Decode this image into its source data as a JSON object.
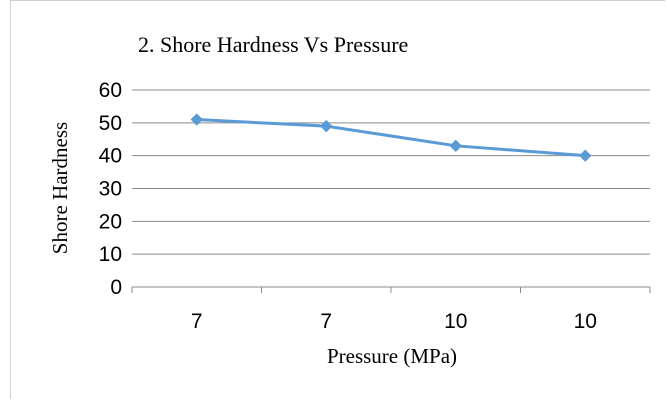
{
  "chart_data": {
    "type": "line",
    "title": "2. Shore Hardness Vs Pressure",
    "xlabel": "Pressure (MPa)",
    "ylabel": "Shore Hardness",
    "categories": [
      "7",
      "7",
      "10",
      "10"
    ],
    "series": [
      {
        "values": [
          51,
          49,
          43,
          40
        ],
        "color": "#5b9bd5",
        "marker": "diamond"
      }
    ],
    "ylim": [
      0,
      60
    ],
    "yticks": [
      0,
      10,
      20,
      30,
      40,
      50,
      60
    ],
    "grid": true,
    "legend": "none"
  }
}
